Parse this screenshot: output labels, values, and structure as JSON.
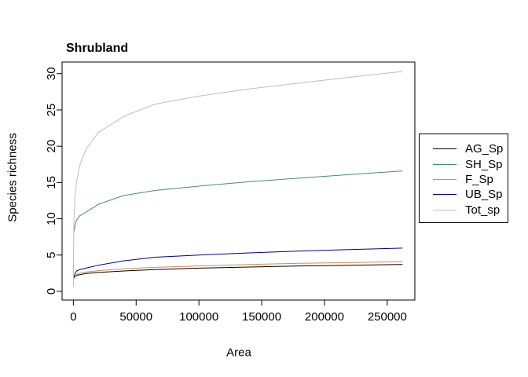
{
  "chart_data": {
    "type": "line",
    "title": "Shrubland",
    "xlabel": "Area",
    "ylabel": "Species richness",
    "xlim": [
      -9000,
      272000
    ],
    "ylim": [
      -1.2,
      31.6
    ],
    "x_ticks": [
      0,
      50000,
      100000,
      150000,
      200000,
      250000
    ],
    "x_tick_labels": [
      "0",
      "50000",
      "100000",
      "150000",
      "200000",
      "250000"
    ],
    "y_ticks": [
      0,
      5,
      10,
      15,
      20,
      25,
      30
    ],
    "y_tick_labels": [
      "0",
      "5",
      "10",
      "15",
      "20",
      "25",
      "30"
    ],
    "grid": false,
    "legend_position": "right",
    "frame_color": "#000000",
    "series": [
      {
        "name": "AG_Sp",
        "color": "#000000",
        "x": [
          600,
          1200,
          2500,
          5000,
          10000,
          20000,
          40000,
          65000,
          100000,
          140000,
          180000,
          220000,
          262144
        ],
        "y": [
          1.8,
          2.0,
          2.2,
          2.3,
          2.45,
          2.6,
          2.8,
          3.0,
          3.2,
          3.35,
          3.5,
          3.6,
          3.7
        ]
      },
      {
        "name": "SH_Sp",
        "color": "#458b74",
        "x": [
          600,
          1200,
          2500,
          5000,
          10000,
          20000,
          40000,
          65000,
          100000,
          140000,
          180000,
          220000,
          262144
        ],
        "y": [
          8.2,
          9.0,
          9.8,
          10.4,
          10.9,
          12.0,
          13.2,
          13.9,
          14.5,
          15.1,
          15.6,
          16.1,
          16.6
        ]
      },
      {
        "name": "F_Sp",
        "color": "#cd8b57",
        "x": [
          600,
          1200,
          2500,
          5000,
          10000,
          20000,
          40000,
          65000,
          100000,
          140000,
          180000,
          220000,
          262144
        ],
        "y": [
          1.9,
          2.1,
          2.3,
          2.5,
          2.65,
          2.85,
          3.1,
          3.3,
          3.5,
          3.7,
          3.85,
          3.95,
          4.1
        ]
      },
      {
        "name": "UB_Sp",
        "color": "#000080",
        "x": [
          600,
          1200,
          2500,
          5000,
          10000,
          20000,
          40000,
          65000,
          100000,
          140000,
          180000,
          220000,
          262144
        ],
        "y": [
          2.0,
          2.4,
          2.8,
          3.0,
          3.2,
          3.6,
          4.2,
          4.7,
          5.0,
          5.3,
          5.55,
          5.75,
          5.95
        ]
      },
      {
        "name": "Tot_sp",
        "color": "#bebebe",
        "x": [
          30,
          100,
          300,
          600,
          1200,
          2500,
          5000,
          10000,
          20000,
          40000,
          65000,
          100000,
          140000,
          180000,
          220000,
          262144
        ],
        "y": [
          0.6,
          4.5,
          8.1,
          10.4,
          12.7,
          15.1,
          17.3,
          19.6,
          21.9,
          24.1,
          25.8,
          26.9,
          27.9,
          28.7,
          29.5,
          30.3
        ]
      }
    ],
    "legend": [
      "AG_Sp",
      "SH_Sp",
      "F_Sp",
      "UB_Sp",
      "Tot_sp"
    ]
  }
}
